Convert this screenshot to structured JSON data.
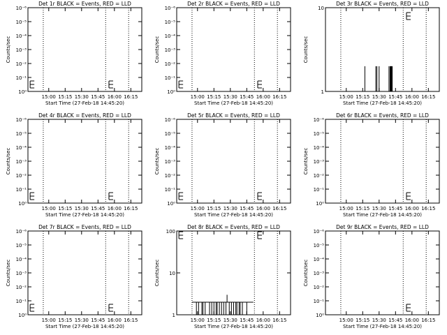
{
  "chart_data": [
    {
      "type": "line",
      "title": "Det 1r BLACK = Events, RED = LLD",
      "ylabel": "Counts/sec",
      "xlabel": "Start Time (27-Feb-18 14:45:20)",
      "y_scale": "log",
      "ylim_exponents": [
        0,
        -6
      ],
      "y_tick_labels": [
        "10⁻⁶",
        "10⁻⁵",
        "10⁻⁴",
        "10⁻³",
        "10⁻²",
        "10⁻¹",
        "10⁰"
      ],
      "x_tick_labels": [
        "15:00",
        "15:15",
        "15:30",
        "15:45",
        "16:00",
        "16:15"
      ],
      "x_tick_minutes": [
        15,
        30,
        45,
        60,
        75,
        90
      ],
      "xlim_minutes": [
        -4,
        100
      ],
      "dotted_lines_minutes": [
        10,
        67,
        88
      ],
      "error_bars": [
        {
          "x": -2,
          "y": -0.5
        },
        {
          "x": 70,
          "y": -0.5
        }
      ],
      "events": []
    },
    {
      "type": "line",
      "title": "Det 2r BLACK = Events, RED = LLD",
      "ylabel": "Counts/sec",
      "xlabel": "Start Time (27-Feb-18 14:45:20)",
      "y_scale": "log",
      "ylim_exponents": [
        0,
        -6
      ],
      "y_tick_labels": [
        "10⁻⁶",
        "10⁻⁵",
        "10⁻⁴",
        "10⁻³",
        "10⁻²",
        "10⁻¹",
        "10⁰"
      ],
      "x_tick_labels": [
        "15:00",
        "15:15",
        "15:30",
        "15:45",
        "16:00",
        "16:15"
      ],
      "x_tick_minutes": [
        15,
        30,
        45,
        60,
        75,
        90
      ],
      "xlim_minutes": [
        -4,
        100
      ],
      "dotted_lines_minutes": [
        10,
        67,
        88
      ],
      "error_bars": [
        {
          "x": -2,
          "y": -0.5
        },
        {
          "x": 70,
          "y": -0.5
        }
      ],
      "events": []
    },
    {
      "type": "line",
      "title": "Det 3r BLACK = Events, RED = LLD",
      "ylabel": "Counts/sec",
      "xlabel": "Start Time (27-Feb-18 14:45:20)",
      "y_scale": "log",
      "ylim_exponents": [
        0,
        1
      ],
      "y_tick_labels": [
        "1",
        "10"
      ],
      "x_tick_labels": [
        "15:00",
        "15:15",
        "15:30",
        "15:45",
        "16:00",
        "16:15"
      ],
      "x_tick_minutes": [
        15,
        30,
        45,
        60,
        75,
        90
      ],
      "xlim_minutes": [
        -4,
        100
      ],
      "dotted_lines_minutes": [
        10,
        67,
        88
      ],
      "error_bars": [
        {
          "x": 70,
          "y": 0.9
        }
      ],
      "events": [
        [
          32,
          2
        ],
        [
          42,
          2
        ],
        [
          43,
          2
        ],
        [
          45,
          2
        ],
        [
          54,
          2
        ],
        [
          55,
          2
        ],
        [
          55.5,
          2
        ],
        [
          56,
          2
        ],
        [
          56.5,
          2
        ],
        [
          57,
          2
        ]
      ]
    },
    {
      "type": "line",
      "title": "Det 4r BLACK = Events, RED = LLD",
      "ylabel": "Counts/sec",
      "xlabel": "Start Time (27-Feb-18 14:45:20)",
      "y_scale": "log",
      "ylim_exponents": [
        0,
        -6
      ],
      "y_tick_labels": [
        "10⁻⁶",
        "10⁻⁵",
        "10⁻⁴",
        "10⁻³",
        "10⁻²",
        "10⁻¹",
        "10⁰"
      ],
      "x_tick_labels": [
        "15:00",
        "15:15",
        "15:30",
        "15:45",
        "16:00",
        "16:15"
      ],
      "x_tick_minutes": [
        15,
        30,
        45,
        60,
        75,
        90
      ],
      "xlim_minutes": [
        -4,
        100
      ],
      "dotted_lines_minutes": [
        10,
        67,
        88
      ],
      "error_bars": [
        {
          "x": -2,
          "y": -0.5
        },
        {
          "x": 70,
          "y": -0.5
        }
      ],
      "events": []
    },
    {
      "type": "line",
      "title": "Det 5r BLACK = Events, RED = LLD",
      "ylabel": "Counts/sec",
      "xlabel": "Start Time (27-Feb-18 14:45:20)",
      "y_scale": "log",
      "ylim_exponents": [
        0,
        -6
      ],
      "y_tick_labels": [
        "10⁻⁶",
        "10⁻⁵",
        "10⁻⁴",
        "10⁻³",
        "10⁻²",
        "10⁻¹",
        "10⁰"
      ],
      "x_tick_labels": [
        "15:00",
        "15:15",
        "15:30",
        "15:45",
        "16:00",
        "16:15"
      ],
      "x_tick_minutes": [
        15,
        30,
        45,
        60,
        75,
        90
      ],
      "xlim_minutes": [
        -4,
        100
      ],
      "dotted_lines_minutes": [
        10,
        67,
        88
      ],
      "error_bars": [
        {
          "x": -2,
          "y": -0.5
        },
        {
          "x": 70,
          "y": -0.5
        }
      ],
      "events": []
    },
    {
      "type": "line",
      "title": "Det 6r BLACK = Events, RED = LLD",
      "ylabel": "Counts/sec",
      "xlabel": "Start Time (27-Feb-18 14:45:20)",
      "y_scale": "log",
      "ylim_exponents": [
        0,
        -6
      ],
      "y_tick_labels": [
        "10⁻⁶",
        "10⁻⁵",
        "10⁻⁴",
        "10⁻³",
        "10⁻²",
        "10⁻¹",
        "10⁰"
      ],
      "x_tick_labels": [
        "15:00",
        "15:15",
        "15:30",
        "15:45",
        "16:00",
        "16:15"
      ],
      "x_tick_minutes": [
        15,
        30,
        45,
        60,
        75,
        90
      ],
      "xlim_minutes": [
        -4,
        100
      ],
      "dotted_lines_minutes": [
        10,
        67,
        88
      ],
      "error_bars": [
        {
          "x": 70,
          "y": -0.5
        }
      ],
      "events": []
    },
    {
      "type": "line",
      "title": "Det 7r BLACK = Events, RED = LLD",
      "ylabel": "Counts/sec",
      "xlabel": "Start Time (27-Feb-18 14:45:20)",
      "y_scale": "log",
      "ylim_exponents": [
        0,
        -6
      ],
      "y_tick_labels": [
        "10⁻⁶",
        "10⁻⁵",
        "10⁻⁴",
        "10⁻³",
        "10⁻²",
        "10⁻¹",
        "10⁰"
      ],
      "x_tick_labels": [
        "15:00",
        "15:15",
        "15:30",
        "15:45",
        "16:00",
        "16:15"
      ],
      "x_tick_minutes": [
        15,
        30,
        45,
        60,
        75,
        90
      ],
      "xlim_minutes": [
        -4,
        100
      ],
      "dotted_lines_minutes": [
        10,
        67,
        88
      ],
      "error_bars": [
        {
          "x": -2,
          "y": -0.5
        },
        {
          "x": 70,
          "y": -0.5
        }
      ],
      "events": []
    },
    {
      "type": "line",
      "title": "Det 8r BLACK = Events, RED = LLD",
      "ylabel": "Counts/sec",
      "xlabel": "Start Time (27-Feb-18 14:45:20)",
      "y_scale": "log",
      "ylim_exponents": [
        0,
        2
      ],
      "y_tick_labels": [
        "1",
        "10",
        "100"
      ],
      "x_tick_labels": [
        "15:00",
        "15:15",
        "15:30",
        "15:45",
        "16:00",
        "16:15"
      ],
      "x_tick_minutes": [
        15,
        30,
        45,
        60,
        75,
        90
      ],
      "xlim_minutes": [
        -4,
        100
      ],
      "dotted_lines_minutes": [
        10,
        67,
        88
      ],
      "error_bars": [
        {
          "x": -2,
          "y": 1.9
        },
        {
          "x": 70,
          "y": 1.9
        }
      ],
      "step_line": {
        "x_start": 10,
        "x_end": 66,
        "baseline": 2,
        "peak": 3,
        "spikes": [
          14,
          16,
          19,
          20,
          22,
          26,
          28,
          30,
          32,
          33,
          35,
          37,
          39,
          41,
          44,
          46,
          48,
          50,
          51,
          53,
          54,
          56,
          60
        ]
      },
      "events": []
    },
    {
      "type": "line",
      "title": "Det 9r BLACK = Events, RED = LLD",
      "ylabel": "Counts/sec",
      "xlabel": "Start Time (27-Feb-18 14:45:20)",
      "y_scale": "log",
      "ylim_exponents": [
        0,
        -6
      ],
      "y_tick_labels": [
        "10⁻⁶",
        "10⁻⁵",
        "10⁻⁴",
        "10⁻³",
        "10⁻²",
        "10⁻¹",
        "10⁰"
      ],
      "x_tick_labels": [
        "15:00",
        "15:15",
        "15:30",
        "15:45",
        "16:00",
        "16:15"
      ],
      "x_tick_minutes": [
        15,
        30,
        45,
        60,
        75,
        90
      ],
      "xlim_minutes": [
        -4,
        100
      ],
      "dotted_lines_minutes": [
        10,
        67,
        88
      ],
      "error_bars": [
        {
          "x": 70,
          "y": -0.5
        }
      ],
      "events": []
    }
  ]
}
